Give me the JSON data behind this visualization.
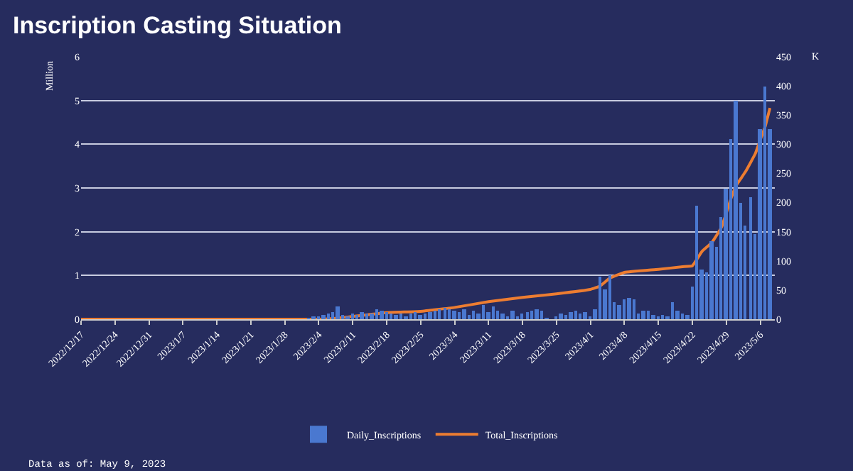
{
  "chart_data": {
    "type": "bar",
    "title": "Inscription Casting Situation",
    "ylabel": "Million",
    "y2label": "K",
    "xlim": [
      "2022-12-17",
      "2023-05-09"
    ],
    "xticks": [
      {
        "value": "2022-12-17",
        "label": "2022/12/17"
      },
      {
        "value": "2022-12-24",
        "label": "2022/12/24"
      },
      {
        "value": "2022-12-31",
        "label": "2022/12/31"
      },
      {
        "value": "2023-01-07",
        "label": "2023/1/7"
      },
      {
        "value": "2023-01-14",
        "label": "2023/1/14"
      },
      {
        "value": "2023-01-21",
        "label": "2023/1/21"
      },
      {
        "value": "2023-01-28",
        "label": "2023/1/28"
      },
      {
        "value": "2023-02-04",
        "label": "2023/2/4"
      },
      {
        "value": "2023-02-11",
        "label": "2023/2/11"
      },
      {
        "value": "2023-02-18",
        "label": "2023/2/18"
      },
      {
        "value": "2023-02-25",
        "label": "2023/2/25"
      },
      {
        "value": "2023-03-04",
        "label": "2023/3/4"
      },
      {
        "value": "2023-03-11",
        "label": "2023/3/11"
      },
      {
        "value": "2023-03-18",
        "label": "2023/3/18"
      },
      {
        "value": "2023-03-25",
        "label": "2023/3/25"
      },
      {
        "value": "2023-04-01",
        "label": "2023/4/1"
      },
      {
        "value": "2023-04-08",
        "label": "2023/4/8"
      },
      {
        "value": "2023-04-15",
        "label": "2023/4/15"
      },
      {
        "value": "2023-04-22",
        "label": "2023/4/22"
      },
      {
        "value": "2023-04-29",
        "label": "2023/4/29"
      },
      {
        "value": "2023-05-06",
        "label": "2023/5/6"
      }
    ],
    "ylim": [
      0,
      6
    ],
    "yticks": [
      0,
      1,
      2,
      3,
      4,
      5,
      6
    ],
    "y2lim": [
      0,
      450
    ],
    "y2ticks": [
      0,
      50,
      100,
      150,
      200,
      250,
      300,
      350,
      400,
      450
    ],
    "grid": "y",
    "legend": "bottom",
    "series": [
      {
        "name": "Daily_Inscriptions",
        "axis": "y2",
        "color": "#4a78d0",
        "x": [
          "2023-02-02",
          "2023-02-03",
          "2023-02-04",
          "2023-02-05",
          "2023-02-06",
          "2023-02-07",
          "2023-02-08",
          "2023-02-09",
          "2023-02-10",
          "2023-02-11",
          "2023-02-12",
          "2023-02-13",
          "2023-02-14",
          "2023-02-15",
          "2023-02-16",
          "2023-02-17",
          "2023-02-18",
          "2023-02-19",
          "2023-02-20",
          "2023-02-21",
          "2023-02-22",
          "2023-02-23",
          "2023-02-24",
          "2023-02-25",
          "2023-02-26",
          "2023-02-27",
          "2023-02-28",
          "2023-03-01",
          "2023-03-02",
          "2023-03-03",
          "2023-03-04",
          "2023-03-05",
          "2023-03-06",
          "2023-03-07",
          "2023-03-08",
          "2023-03-09",
          "2023-03-10",
          "2023-03-11",
          "2023-03-12",
          "2023-03-13",
          "2023-03-14",
          "2023-03-15",
          "2023-03-16",
          "2023-03-17",
          "2023-03-18",
          "2023-03-19",
          "2023-03-20",
          "2023-03-21",
          "2023-03-22",
          "2023-03-23",
          "2023-03-24",
          "2023-03-25",
          "2023-03-26",
          "2023-03-27",
          "2023-03-28",
          "2023-03-29",
          "2023-03-30",
          "2023-03-31",
          "2023-04-01",
          "2023-04-02",
          "2023-04-03",
          "2023-04-04",
          "2023-04-05",
          "2023-04-06",
          "2023-04-07",
          "2023-04-08",
          "2023-04-09",
          "2023-04-10",
          "2023-04-11",
          "2023-04-12",
          "2023-04-13",
          "2023-04-14",
          "2023-04-15",
          "2023-04-16",
          "2023-04-17",
          "2023-04-18",
          "2023-04-19",
          "2023-04-20",
          "2023-04-21",
          "2023-04-22",
          "2023-04-23",
          "2023-04-24",
          "2023-04-25",
          "2023-04-26",
          "2023-04-27",
          "2023-04-28",
          "2023-04-29",
          "2023-04-30",
          "2023-05-01",
          "2023-05-02",
          "2023-05-03",
          "2023-05-04",
          "2023-05-05",
          "2023-05-06",
          "2023-05-07",
          "2023-05-08"
        ],
        "values": [
          2,
          3,
          5,
          8,
          10,
          12,
          22,
          8,
          6,
          10,
          8,
          12,
          9,
          10,
          18,
          15,
          12,
          10,
          8,
          9,
          6,
          10,
          12,
          8,
          10,
          12,
          15,
          18,
          20,
          18,
          15,
          12,
          18,
          8,
          15,
          10,
          25,
          12,
          22,
          15,
          10,
          5,
          15,
          5,
          10,
          12,
          15,
          18,
          15,
          2,
          0,
          5,
          10,
          8,
          12,
          15,
          10,
          12,
          5,
          18,
          72,
          50,
          75,
          30,
          25,
          35,
          36,
          35,
          10,
          14,
          14,
          8,
          5,
          7,
          5,
          28,
          15,
          10,
          8,
          55,
          195,
          85,
          80,
          135,
          125,
          175,
          225,
          308,
          375,
          200,
          160,
          208,
          145,
          325,
          400,
          325
        ]
      },
      {
        "name": "Total_Inscriptions",
        "type": "line",
        "color": "#ed7d31",
        "x": [
          "2022-12-17",
          "2023-02-01",
          "2023-02-06",
          "2023-02-10",
          "2023-02-18",
          "2023-02-25",
          "2023-03-04",
          "2023-03-11",
          "2023-03-18",
          "2023-03-25",
          "2023-04-01",
          "2023-04-03",
          "2023-04-05",
          "2023-04-08",
          "2023-04-15",
          "2023-04-20",
          "2023-04-22",
          "2023-04-24",
          "2023-04-26",
          "2023-04-28",
          "2023-04-30",
          "2023-05-01",
          "2023-05-03",
          "2023-05-05",
          "2023-05-06",
          "2023-05-07",
          "2023-05-08"
        ],
        "values": [
          0,
          0,
          0.01,
          0.05,
          0.15,
          0.18,
          0.27,
          0.4,
          0.5,
          0.58,
          0.68,
          0.76,
          0.94,
          1.07,
          1.14,
          1.2,
          1.22,
          1.55,
          1.75,
          2.1,
          2.77,
          3.05,
          3.38,
          3.79,
          4.1,
          4.4,
          4.83
        ]
      }
    ],
    "annotations": [
      "Data as of: May 9, 2023"
    ]
  }
}
